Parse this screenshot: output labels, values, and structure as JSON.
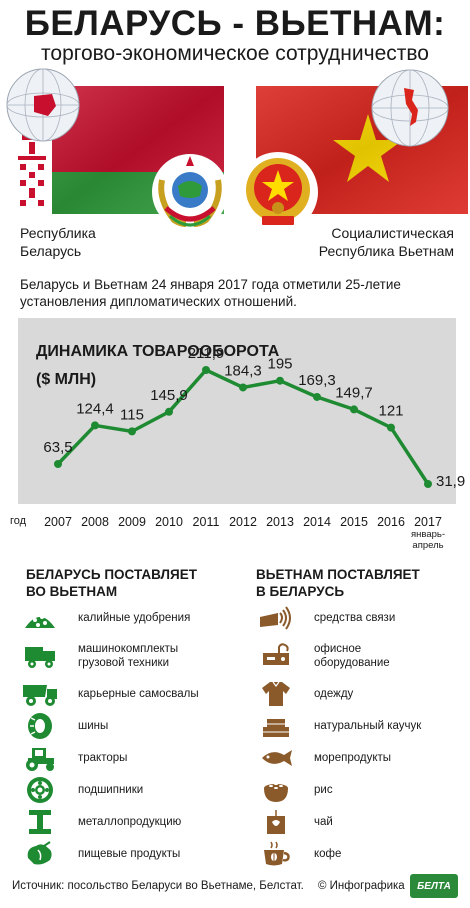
{
  "header": {
    "title": "БЕЛАРУСЬ - ВЬЕТНАМ:",
    "subtitle": "торгово-экономическое сотрудничество"
  },
  "countries": {
    "belarus_line1": "Республика",
    "belarus_line2": "Беларусь",
    "vietnam_line1": "Социалистическая",
    "vietnam_line2": "Республика Вьетнам"
  },
  "intro": {
    "line1": "Беларусь и Вьетнам 24 января 2017 года отметили 25-летие",
    "line2": "установления дипломатических отношений."
  },
  "chart_data": {
    "type": "line",
    "title": "ДИНАМИКА ТОВАРООБОРОТА",
    "ylabel": "($ МЛН)",
    "xlabel": "год",
    "x": [
      "2007",
      "2008",
      "2009",
      "2010",
      "2011",
      "2012",
      "2013",
      "2014",
      "2015",
      "2016",
      "2017"
    ],
    "x_note_2017": "январь-апрель",
    "values": [
      63.5,
      124.4,
      115,
      145.9,
      211.9,
      184.3,
      195,
      169.3,
      149.7,
      121,
      31.9
    ],
    "value_labels": [
      "63,5",
      "124,4",
      "115",
      "145,9",
      "211,9",
      "184,3",
      "195",
      "169,3",
      "149,7",
      "121",
      "31,9"
    ],
    "grid": false,
    "legend": "none",
    "line_color": "#1e8a32"
  },
  "exports": {
    "title_line1": "БЕЛАРУСЬ ПОСТАВЛЯЕТ",
    "title_line2": "ВО ВЬЕТНАМ",
    "items": [
      {
        "label1": "калийные удобрения",
        "label2": "",
        "icon": "fertilizer-icon"
      },
      {
        "label1": "машинокомплекты",
        "label2": "грузовой техники",
        "icon": "truck-kit-icon"
      },
      {
        "label1": "карьерные самосвалы",
        "label2": "",
        "icon": "dump-truck-icon"
      },
      {
        "label1": "шины",
        "label2": "",
        "icon": "tire-icon"
      },
      {
        "label1": "тракторы",
        "label2": "",
        "icon": "tractor-icon"
      },
      {
        "label1": "подшипники",
        "label2": "",
        "icon": "bearing-icon"
      },
      {
        "label1": "металлопродукцию",
        "label2": "",
        "icon": "metal-beam-icon"
      },
      {
        "label1": "пищевые продукты",
        "label2": "",
        "icon": "food-icon"
      }
    ]
  },
  "imports": {
    "title_line1": "ВЬЕТНАМ ПОСТАВЛЯЕТ",
    "title_line2": "В БЕЛАРУСЬ",
    "items": [
      {
        "label1": "средства связи",
        "label2": "",
        "icon": "communication-icon"
      },
      {
        "label1": "офисное",
        "label2": "оборудование",
        "icon": "office-equipment-icon"
      },
      {
        "label1": "одежду",
        "label2": "",
        "icon": "shirt-icon"
      },
      {
        "label1": "натуральный каучук",
        "label2": "",
        "icon": "rubber-icon"
      },
      {
        "label1": "морепродукты",
        "label2": "",
        "icon": "fish-icon"
      },
      {
        "label1": "рис",
        "label2": "",
        "icon": "rice-icon"
      },
      {
        "label1": "чай",
        "label2": "",
        "icon": "tea-icon"
      },
      {
        "label1": "кофе",
        "label2": "",
        "icon": "coffee-icon"
      }
    ]
  },
  "footer": {
    "source": "Источник: посольство Беларуси во Вьетнаме, Белстат.",
    "credit": "© Инфографика",
    "logo": "БЕЛТА"
  },
  "colors": {
    "green": "#1e8a32",
    "brown": "#8a5a2b",
    "belarus_red": "#c8102e",
    "vietnam_red": "#da251d",
    "star_yellow": "#ffdd00",
    "panel_gray": "#d9d9d9"
  }
}
